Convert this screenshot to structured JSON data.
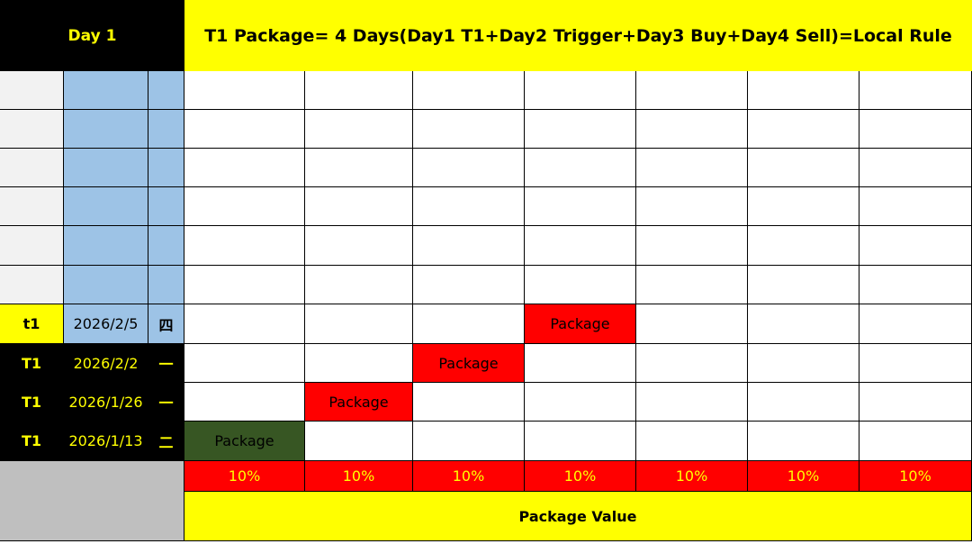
{
  "header": {
    "day_label": "Day 1",
    "title": "T1 Package= 4 Days(Day1 T1+Day2 Trigger+Day3 Buy+Day4 Sell)=Local Rule"
  },
  "dated_rows": [
    {
      "code": "t1",
      "date": "2026/2/5",
      "weekday": "四",
      "package_col": 3
    },
    {
      "code": "T1",
      "date": "2026/2/2",
      "weekday": "一",
      "package_col": 2
    },
    {
      "code": "T1",
      "date": "2026/1/26",
      "weekday": "一",
      "package_col": 1
    },
    {
      "code": "T1",
      "date": "2026/1/13",
      "weekday": "二",
      "package_col": 0
    }
  ],
  "package_label": "Package",
  "percent_row": [
    "10%",
    "10%",
    "10%",
    "10%",
    "10%",
    "10%",
    "10%"
  ],
  "footer": {
    "label": "Package Value"
  },
  "colors": {
    "black": "#000000",
    "yellow": "#ffff00",
    "light_blue": "#9dc3e6",
    "light_gray": "#f2f2f2",
    "mid_gray": "#bfbfbf",
    "red": "#ff0000",
    "dark_green": "#375623"
  }
}
